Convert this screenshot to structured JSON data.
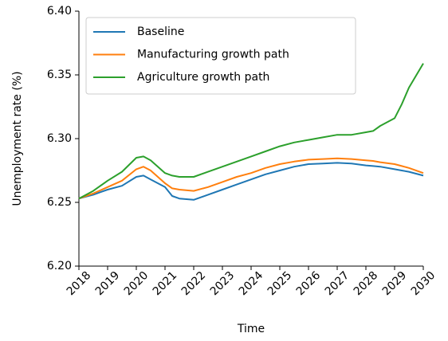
{
  "chart_data": {
    "type": "line",
    "xlabel": "Time",
    "ylabel": "Unemployment rate (%)",
    "x": [
      2018,
      2018.5,
      2019,
      2019.5,
      2020,
      2020.25,
      2020.5,
      2021,
      2021.25,
      2021.5,
      2022,
      2022.5,
      2023,
      2023.5,
      2024,
      2024.5,
      2025,
      2025.5,
      2026,
      2026.5,
      2027,
      2027.5,
      2028,
      2028.25,
      2028.5,
      2029,
      2029.25,
      2029.5,
      2030
    ],
    "series": [
      {
        "name": "Baseline",
        "color": "#1f77b4",
        "values": [
          6.253,
          6.256,
          6.26,
          6.263,
          6.27,
          6.271,
          6.268,
          6.262,
          6.255,
          6.253,
          6.252,
          6.256,
          6.26,
          6.264,
          6.268,
          6.272,
          6.275,
          6.278,
          6.28,
          6.2805,
          6.281,
          6.2805,
          6.279,
          6.2785,
          6.278,
          6.276,
          6.275,
          6.274,
          6.271
        ]
      },
      {
        "name": "Manufacturing growth path",
        "color": "#ff7f0e",
        "values": [
          6.253,
          6.257,
          6.262,
          6.267,
          6.276,
          6.278,
          6.275,
          6.265,
          6.261,
          6.26,
          6.259,
          6.262,
          6.266,
          6.27,
          6.273,
          6.277,
          6.28,
          6.282,
          6.2835,
          6.284,
          6.2845,
          6.284,
          6.283,
          6.2825,
          6.2815,
          6.28,
          6.2785,
          6.277,
          6.273
        ]
      },
      {
        "name": "Agriculture growth path",
        "color": "#2ca02c",
        "values": [
          6.253,
          6.259,
          6.267,
          6.274,
          6.285,
          6.286,
          6.283,
          6.273,
          6.271,
          6.27,
          6.27,
          6.274,
          6.278,
          6.282,
          6.286,
          6.29,
          6.294,
          6.297,
          6.299,
          6.301,
          6.303,
          6.303,
          6.305,
          6.306,
          6.31,
          6.316,
          6.327,
          6.34,
          6.359
        ]
      }
    ],
    "xlim": [
      2018,
      2030
    ],
    "xticks": [
      2018,
      2019,
      2020,
      2021,
      2022,
      2023,
      2024,
      2025,
      2026,
      2027,
      2028,
      2029,
      2030
    ],
    "ylim": [
      6.2,
      6.4
    ],
    "yticks": [
      {
        "value": 6.2,
        "label": "6.20"
      },
      {
        "value": 6.25,
        "label": "6.25"
      },
      {
        "value": 6.3,
        "label": "6.30"
      },
      {
        "value": 6.35,
        "label": "6.35"
      },
      {
        "value": 6.4,
        "label": "6.40"
      }
    ],
    "grid": false,
    "legend": "upper left"
  }
}
